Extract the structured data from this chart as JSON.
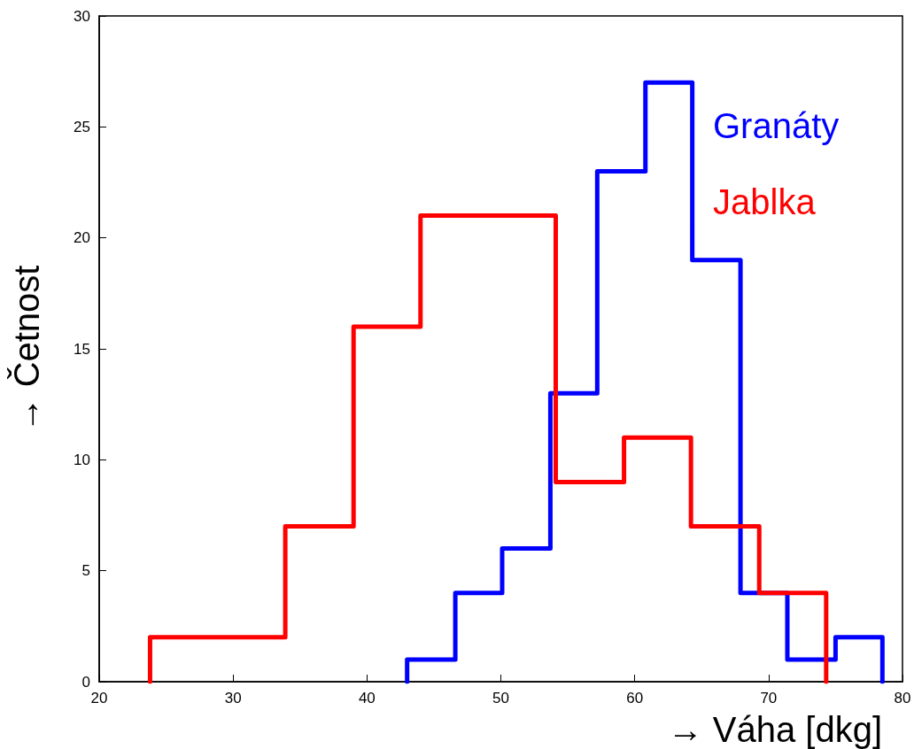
{
  "chart_data": {
    "type": "step",
    "xlabel": "→ Váha [dkg]",
    "ylabel": "→ Četnost",
    "xlim": [
      20,
      80
    ],
    "xticks": [
      20,
      30,
      40,
      50,
      60,
      70,
      80
    ],
    "ylim": [
      0,
      30
    ],
    "yticks": [
      0,
      5,
      10,
      15,
      20,
      25,
      30
    ],
    "grid": false,
    "marker": "none",
    "line_style": "solid",
    "series": [
      {
        "name": "Granáty",
        "color": "#0000ff",
        "x": [
          43.0,
          43.0,
          46.6,
          50.1,
          53.7,
          57.2,
          60.8,
          64.3,
          67.9,
          71.4,
          75.0,
          78.5
        ],
        "values": [
          0,
          1,
          4,
          6,
          13,
          23,
          27,
          19,
          4,
          1,
          2,
          0
        ]
      },
      {
        "name": "Jablka",
        "color": "#ff0000",
        "x": [
          23.8,
          23.8,
          28.9,
          33.9,
          39.0,
          44.0,
          49.1,
          54.1,
          59.2,
          64.2,
          69.3,
          74.3
        ],
        "values": [
          0,
          2,
          2,
          7,
          16,
          21,
          21,
          9,
          11,
          7,
          4,
          0
        ]
      }
    ]
  }
}
